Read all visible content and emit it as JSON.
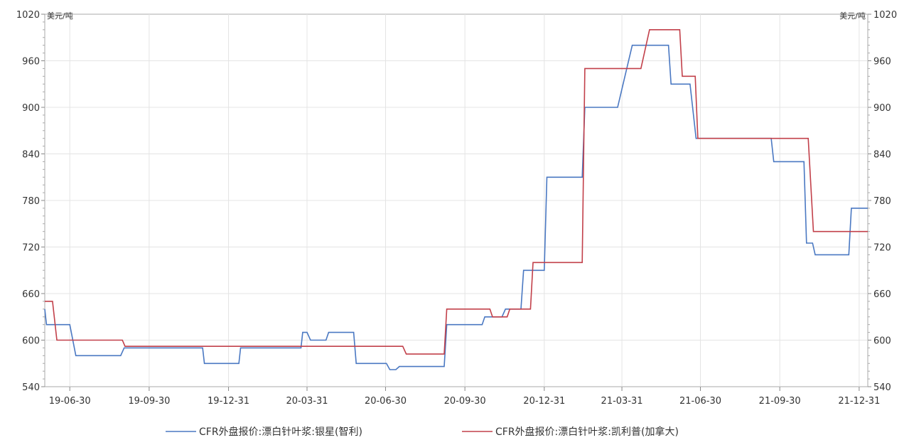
{
  "chart_data": {
    "type": "line",
    "unit_left": "美元/吨",
    "unit_right": "美元/吨",
    "ylim": [
      540,
      1020
    ],
    "y_ticks": [
      "540",
      "600",
      "660",
      "720",
      "780",
      "840",
      "900",
      "960",
      "1020"
    ],
    "x_ticks": [
      "19-06-30",
      "19-09-30",
      "19-12-31",
      "20-03-31",
      "20-06-30",
      "20-09-30",
      "20-12-31",
      "21-03-31",
      "21-06-30",
      "21-09-30",
      "21-12-31"
    ],
    "xlim": [
      "2019-06-01",
      "2022-01-10"
    ],
    "grid": true,
    "legend_position": "bottom",
    "series": [
      {
        "name": "CFR外盘报价:漂白针叶浆:银星(智利)",
        "color": "#4a78c2",
        "points": [
          [
            "2019-06-01",
            640
          ],
          [
            "2019-06-03",
            620
          ],
          [
            "2019-06-30",
            620
          ],
          [
            "2019-07-07",
            580
          ],
          [
            "2019-08-28",
            580
          ],
          [
            "2019-09-01",
            590
          ],
          [
            "2019-12-01",
            590
          ],
          [
            "2019-12-03",
            570
          ],
          [
            "2020-01-12",
            570
          ],
          [
            "2020-01-14",
            590
          ],
          [
            "2020-03-24",
            590
          ],
          [
            "2020-03-26",
            610
          ],
          [
            "2020-03-31",
            610
          ],
          [
            "2020-04-04",
            600
          ],
          [
            "2020-04-22",
            600
          ],
          [
            "2020-04-25",
            610
          ],
          [
            "2020-05-24",
            610
          ],
          [
            "2020-05-27",
            570
          ],
          [
            "2020-07-01",
            570
          ],
          [
            "2020-07-05",
            562
          ],
          [
            "2020-07-12",
            562
          ],
          [
            "2020-07-16",
            566
          ],
          [
            "2020-09-06",
            566
          ],
          [
            "2020-09-09",
            620
          ],
          [
            "2020-10-20",
            620
          ],
          [
            "2020-10-23",
            630
          ],
          [
            "2020-11-12",
            630
          ],
          [
            "2020-11-16",
            640
          ],
          [
            "2020-12-04",
            640
          ],
          [
            "2020-12-07",
            690
          ],
          [
            "2020-12-31",
            690
          ],
          [
            "2021-01-03",
            810
          ],
          [
            "2021-02-13",
            810
          ],
          [
            "2021-02-16",
            900
          ],
          [
            "2021-03-26",
            900
          ],
          [
            "2021-04-12",
            980
          ],
          [
            "2021-05-24",
            980
          ],
          [
            "2021-05-27",
            930
          ],
          [
            "2021-06-18",
            930
          ],
          [
            "2021-06-25",
            860
          ],
          [
            "2021-09-20",
            860
          ],
          [
            "2021-09-23",
            830
          ],
          [
            "2021-10-28",
            830
          ],
          [
            "2021-10-31",
            725
          ],
          [
            "2021-11-07",
            725
          ],
          [
            "2021-11-10",
            710
          ],
          [
            "2021-12-19",
            710
          ],
          [
            "2021-12-22",
            770
          ],
          [
            "2022-01-10",
            770
          ]
        ]
      },
      {
        "name": "CFR外盘报价:漂白针叶浆:凯利普(加拿大)",
        "color": "#c2404a",
        "points": [
          [
            "2019-06-01",
            650
          ],
          [
            "2019-06-10",
            650
          ],
          [
            "2019-06-15",
            600
          ],
          [
            "2019-08-30",
            600
          ],
          [
            "2019-09-02",
            592
          ],
          [
            "2020-07-20",
            592
          ],
          [
            "2020-07-24",
            582
          ],
          [
            "2020-09-06",
            582
          ],
          [
            "2020-09-09",
            640
          ],
          [
            "2020-10-29",
            640
          ],
          [
            "2020-11-01",
            630
          ],
          [
            "2020-11-18",
            630
          ],
          [
            "2020-11-21",
            640
          ],
          [
            "2020-12-15",
            640
          ],
          [
            "2020-12-18",
            700
          ],
          [
            "2021-02-13",
            700
          ],
          [
            "2021-02-16",
            950
          ],
          [
            "2021-04-22",
            950
          ],
          [
            "2021-05-02",
            1000
          ],
          [
            "2021-06-06",
            1000
          ],
          [
            "2021-06-09",
            940
          ],
          [
            "2021-06-24",
            940
          ],
          [
            "2021-06-27",
            860
          ],
          [
            "2021-11-02",
            860
          ],
          [
            "2021-11-08",
            740
          ],
          [
            "2022-01-10",
            740
          ]
        ]
      }
    ]
  }
}
